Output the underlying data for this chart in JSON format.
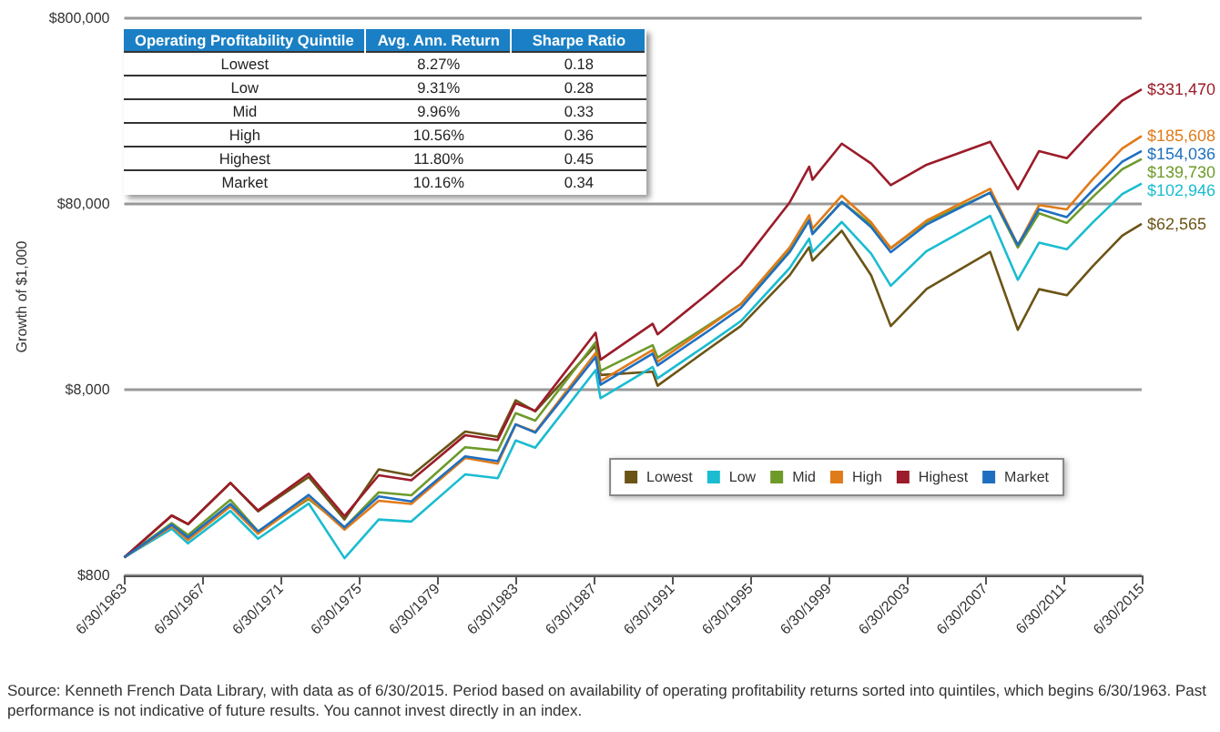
{
  "chart_data": [
    {
      "type": "line",
      "ylabel": "Growth of $1,000",
      "log": "y",
      "grid": "y",
      "legend": "bottom right",
      "x": [
        "1963-06-30",
        "1965-12",
        "1966-10",
        "1968-12",
        "1970-05",
        "1972-12",
        "1974-10",
        "1976-07",
        "1978-03",
        "1980-12",
        "1982-08",
        "1983-07",
        "1984-07",
        "1987-08",
        "1987-11",
        "1990-07",
        "1990-10",
        "1993-07",
        "1995-01",
        "1997-07",
        "1998-07",
        "1998-09",
        "2000-03",
        "2001-09",
        "2002-09",
        "2004-07",
        "2007-10",
        "2009-03",
        "2010-04",
        "2011-09",
        "2013-01",
        "2014-07",
        "2015-06-30"
      ],
      "xlim": [
        "1963-06-30",
        "2015-06-30"
      ],
      "xticks": [
        {
          "value": "1963-06-30",
          "label": "6/30/1963"
        },
        {
          "value": "1967-06-30",
          "label": "6/30/1967"
        },
        {
          "value": "1971-06-30",
          "label": "6/30/1971"
        },
        {
          "value": "1975-06-30",
          "label": "6/30/1975"
        },
        {
          "value": "1979-06-30",
          "label": "6/30/1979"
        },
        {
          "value": "1983-06-30",
          "label": "6/30/1983"
        },
        {
          "value": "1987-06-30",
          "label": "6/30/1987"
        },
        {
          "value": "1991-06-30",
          "label": "6/30/1991"
        },
        {
          "value": "1995-06-30",
          "label": "6/30/1995"
        },
        {
          "value": "1999-06-30",
          "label": "6/30/1999"
        },
        {
          "value": "2003-06-30",
          "label": "6/30/2003"
        },
        {
          "value": "2007-06-30",
          "label": "6/30/2007"
        },
        {
          "value": "2011-06-30",
          "label": "6/30/2011"
        },
        {
          "value": "2015-06-30",
          "label": "6/30/2015"
        }
      ],
      "ylim": [
        800,
        800000
      ],
      "yticks": [
        {
          "value": 800,
          "label": "$800"
        },
        {
          "value": 8000,
          "label": "$8,000"
        },
        {
          "value": 80000,
          "label": "$80,000"
        },
        {
          "value": 800000,
          "label": "$800,000"
        }
      ],
      "series": [
        {
          "name": "Lowest",
          "color": "#6b5416",
          "values": [
            1000,
            1680,
            1510,
            2520,
            1770,
            2710,
            1600,
            2980,
            2760,
            4760,
            4460,
            7020,
            6110,
            13800,
            9600,
            10000,
            8400,
            13600,
            17600,
            33000,
            46800,
            39600,
            57400,
            33000,
            17600,
            27900,
            44200,
            16800,
            27800,
            25800,
            37100,
            54000,
            62565
          ],
          "value_labels": [
            null,
            null,
            null,
            null,
            null,
            null,
            null,
            null,
            null,
            null,
            null,
            null,
            null,
            null,
            null,
            null,
            null,
            null,
            null,
            null,
            null,
            null,
            null,
            null,
            null,
            null,
            null,
            null,
            null,
            null,
            null,
            null,
            "$62,565"
          ]
        },
        {
          "name": "Low",
          "color": "#1bbcd0",
          "values": [
            1000,
            1425,
            1190,
            1780,
            1260,
            1950,
            990,
            1600,
            1560,
            2800,
            2670,
            4260,
            3900,
            10200,
            7200,
            10600,
            9200,
            14500,
            18700,
            36100,
            52000,
            44000,
            64000,
            43200,
            29000,
            44600,
            69000,
            31200,
            49500,
            45600,
            63700,
            90500,
            102946
          ],
          "value_labels": [
            null,
            null,
            null,
            null,
            null,
            null,
            null,
            null,
            null,
            null,
            null,
            null,
            null,
            null,
            null,
            null,
            null,
            null,
            null,
            null,
            null,
            null,
            null,
            null,
            null,
            null,
            null,
            null,
            null,
            null,
            null,
            null,
            "$102,946"
          ]
        },
        {
          "name": "Mid",
          "color": "#6e9a2a",
          "values": [
            1000,
            1530,
            1320,
            2040,
            1380,
            2060,
            1450,
            2240,
            2160,
            3920,
            3760,
            5980,
            5450,
            14400,
            10100,
            13900,
            11900,
            18200,
            23100,
            44900,
            65700,
            55600,
            82000,
            61800,
            46200,
            63900,
            92000,
            46600,
            71300,
            63200,
            87400,
            123000,
            139730
          ],
          "value_labels": [
            null,
            null,
            null,
            null,
            null,
            null,
            null,
            null,
            null,
            null,
            null,
            null,
            null,
            null,
            null,
            null,
            null,
            null,
            null,
            null,
            null,
            null,
            null,
            null,
            null,
            null,
            null,
            null,
            null,
            null,
            null,
            null,
            "$139,730"
          ]
        },
        {
          "name": "High",
          "color": "#e07b1a",
          "values": [
            1000,
            1470,
            1240,
            1880,
            1340,
            2100,
            1410,
            2020,
            1940,
            3430,
            3200,
            5200,
            4750,
            12600,
            8900,
            13100,
            11300,
            17900,
            23100,
            46600,
            69600,
            58900,
            88600,
            63600,
            46200,
            65100,
            96600,
            48000,
            78800,
            74800,
            109000,
            159000,
            185608
          ],
          "value_labels": [
            null,
            null,
            null,
            null,
            null,
            null,
            null,
            null,
            null,
            null,
            null,
            null,
            null,
            null,
            null,
            null,
            null,
            null,
            null,
            null,
            null,
            null,
            null,
            null,
            null,
            null,
            null,
            null,
            null,
            null,
            null,
            null,
            "$185,608"
          ]
        },
        {
          "name": "Highest",
          "color": "#9b1c2a",
          "values": [
            1000,
            1680,
            1510,
            2520,
            1790,
            2820,
            1670,
            2770,
            2600,
            4550,
            4290,
            6760,
            6160,
            16200,
            11600,
            18100,
            15900,
            27200,
            37400,
            81400,
            127000,
            108000,
            169000,
            132000,
            101000,
            130000,
            173000,
            96000,
            154000,
            141000,
            200000,
            288000,
            331470
          ],
          "value_labels": [
            null,
            null,
            null,
            null,
            null,
            null,
            null,
            null,
            null,
            null,
            null,
            null,
            null,
            null,
            null,
            null,
            null,
            null,
            null,
            null,
            null,
            null,
            null,
            null,
            null,
            null,
            null,
            null,
            null,
            null,
            null,
            null,
            "$331,470"
          ]
        },
        {
          "name": "Market",
          "color": "#1f6fc0",
          "values": [
            1000,
            1500,
            1280,
            1940,
            1380,
            2170,
            1450,
            2130,
            2000,
            3500,
            3300,
            5200,
            4700,
            12000,
            8500,
            12500,
            10800,
            17000,
            22000,
            44000,
            65000,
            55000,
            82000,
            60000,
            44000,
            62000,
            92000,
            48000,
            75000,
            68000,
            95000,
            135000,
            154036
          ],
          "value_labels": [
            null,
            null,
            null,
            null,
            null,
            null,
            null,
            null,
            null,
            null,
            null,
            null,
            null,
            null,
            null,
            null,
            null,
            null,
            null,
            null,
            null,
            null,
            null,
            null,
            null,
            null,
            null,
            null,
            null,
            null,
            null,
            null,
            "$154,036"
          ]
        }
      ],
      "annotations": [
        "Source: Kenneth French Data Library, with data as of 6/30/2015. Period based on availability of operating profitability returns sorted into quintiles, which begins 6/30/1963. Past performance is not indicative of future results. You cannot invest directly in an index."
      ]
    },
    {
      "type": "other",
      "title": "Operating Profitability Quintile",
      "categories": [
        "Lowest",
        "Low",
        "Mid",
        "High",
        "Highest",
        "Market"
      ],
      "series": [
        {
          "name": "Avg. Ann. Return",
          "values": [
            8.27,
            9.31,
            9.96,
            10.56,
            11.8,
            10.16
          ],
          "value_labels": [
            "8.27%",
            "9.31%",
            "9.96%",
            "10.56%",
            "11.80%",
            "10.16%"
          ]
        },
        {
          "name": "Sharpe Ratio",
          "values": [
            0.18,
            0.28,
            0.33,
            0.36,
            0.45,
            0.34
          ],
          "value_labels": [
            "0.18",
            "0.28",
            "0.33",
            "0.36",
            "0.45",
            "0.34"
          ]
        }
      ]
    }
  ]
}
